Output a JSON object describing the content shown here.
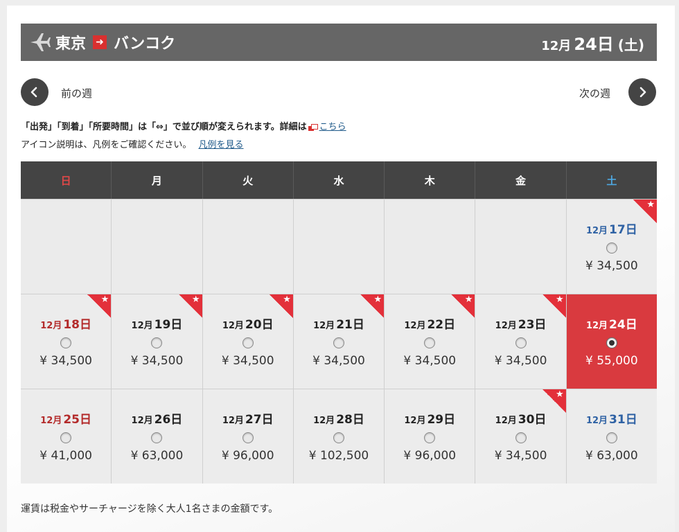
{
  "route": {
    "from": "東京",
    "to": "バンコク",
    "date_month": "12月",
    "date_day": "24日",
    "date_dow": "(土)"
  },
  "nav": {
    "prev_label": "前の週",
    "next_label": "次の週"
  },
  "notes": {
    "sort_text": "「出発」「到着」「所要時間」は「⇔」で並び順が変えられます。詳細は",
    "sort_link": "こちら",
    "legend_text": "アイコン説明は、凡例をご確認ください。",
    "legend_link": "凡例を見る"
  },
  "weekdays": [
    "日",
    "月",
    "火",
    "水",
    "木",
    "金",
    "土"
  ],
  "weekday_colors": {
    "sun": "#e04848",
    "sat": "#4ea7e0",
    "default": "#ffffff"
  },
  "weeks": [
    {
      "days": [
        {
          "empty": true
        },
        {
          "empty": true
        },
        {
          "empty": true
        },
        {
          "empty": true
        },
        {
          "empty": true
        },
        {
          "empty": true
        },
        {
          "month": "12月",
          "day": "17日",
          "price": "¥ 34,500",
          "star": true,
          "selected": false
        }
      ]
    },
    {
      "days": [
        {
          "month": "12月",
          "day": "18日",
          "price": "¥ 34,500",
          "star": true,
          "selected": false
        },
        {
          "month": "12月",
          "day": "19日",
          "price": "¥ 34,500",
          "star": true,
          "selected": false
        },
        {
          "month": "12月",
          "day": "20日",
          "price": "¥ 34,500",
          "star": true,
          "selected": false
        },
        {
          "month": "12月",
          "day": "21日",
          "price": "¥ 34,500",
          "star": true,
          "selected": false
        },
        {
          "month": "12月",
          "day": "22日",
          "price": "¥ 34,500",
          "star": true,
          "selected": false
        },
        {
          "month": "12月",
          "day": "23日",
          "price": "¥ 34,500",
          "star": true,
          "selected": false
        },
        {
          "month": "12月",
          "day": "24日",
          "price": "¥ 55,000",
          "star": false,
          "selected": true
        }
      ]
    },
    {
      "days": [
        {
          "month": "12月",
          "day": "25日",
          "price": "¥ 41,000",
          "star": false,
          "selected": false
        },
        {
          "month": "12月",
          "day": "26日",
          "price": "¥ 63,000",
          "star": false,
          "selected": false
        },
        {
          "month": "12月",
          "day": "27日",
          "price": "¥ 96,000",
          "star": false,
          "selected": false
        },
        {
          "month": "12月",
          "day": "28日",
          "price": "¥ 102,500",
          "star": false,
          "selected": false
        },
        {
          "month": "12月",
          "day": "29日",
          "price": "¥ 96,000",
          "star": false,
          "selected": false
        },
        {
          "month": "12月",
          "day": "30日",
          "price": "¥ 34,500",
          "star": true,
          "selected": false
        },
        {
          "month": "12月",
          "day": "31日",
          "price": "¥ 63,000",
          "star": false,
          "selected": false
        }
      ]
    }
  ],
  "footer": "運賃は税金やサーチャージを除く大人1名さまの金額です。",
  "icons": {
    "plane": "airplane-icon",
    "arrow": "arrow-right-icon",
    "prev": "chevron-left-icon",
    "next": "chevron-right-icon",
    "star": "star-icon",
    "external": "external-link-icon"
  },
  "colors": {
    "accent": "#d93a3f",
    "header_bar": "#666666",
    "calendar_head": "#444444"
  }
}
